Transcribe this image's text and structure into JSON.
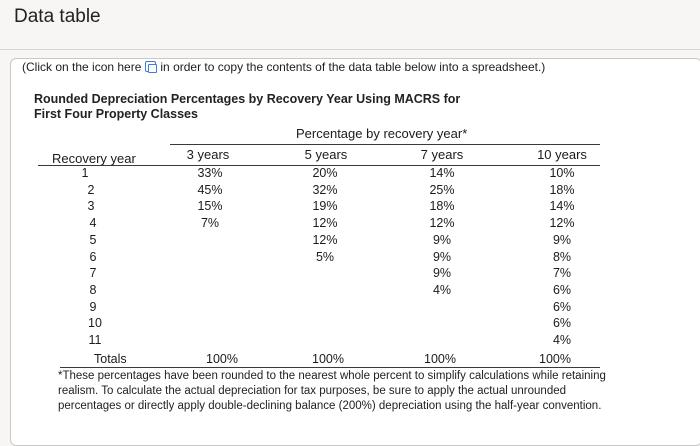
{
  "page": {
    "title": "Data table"
  },
  "instructions": {
    "before": "(Click on the icon here",
    "after": "in order to copy the contents of the data table below into a spreadsheet.)",
    "icon": "copy-icon"
  },
  "table": {
    "caption_line1": "Rounded Depreciation Percentages by Recovery Year Using MACRS for",
    "caption_line2": "First Four Property Classes",
    "group_header": "Percentage by recovery year*",
    "row_header": "Recovery year",
    "columns": [
      "3 years",
      "5 years",
      "7 years",
      "10 years"
    ],
    "rows": [
      {
        "year": "1",
        "values": [
          "33%",
          "20%",
          "14%",
          "10%"
        ]
      },
      {
        "year": "2",
        "values": [
          "45%",
          "32%",
          "25%",
          "18%"
        ]
      },
      {
        "year": "3",
        "values": [
          "15%",
          "19%",
          "18%",
          "14%"
        ]
      },
      {
        "year": "4",
        "values": [
          "7%",
          "12%",
          "12%",
          "12%"
        ]
      },
      {
        "year": "5",
        "values": [
          "",
          "12%",
          "9%",
          "9%"
        ]
      },
      {
        "year": "6",
        "values": [
          "",
          "5%",
          "9%",
          "8%"
        ]
      },
      {
        "year": "7",
        "values": [
          "",
          "",
          "9%",
          "7%"
        ]
      },
      {
        "year": "8",
        "values": [
          "",
          "",
          "4%",
          "6%"
        ]
      },
      {
        "year": "9",
        "values": [
          "",
          "",
          "",
          "6%"
        ]
      },
      {
        "year": "10",
        "values": [
          "",
          "",
          "",
          "6%"
        ]
      },
      {
        "year": "11",
        "values": [
          "",
          "",
          "",
          "4%"
        ]
      }
    ],
    "totals_label": "Totals",
    "totals": [
      "100%",
      "100%",
      "100%",
      "100%"
    ]
  },
  "footnote": "*These percentages have been rounded to the nearest whole percent to simplify calculations while retaining realism. To calculate the actual depreciation for tax purposes, be sure to apply the actual unrounded percentages or directly apply double-declining balance (200%) depreciation using the half-year convention."
}
